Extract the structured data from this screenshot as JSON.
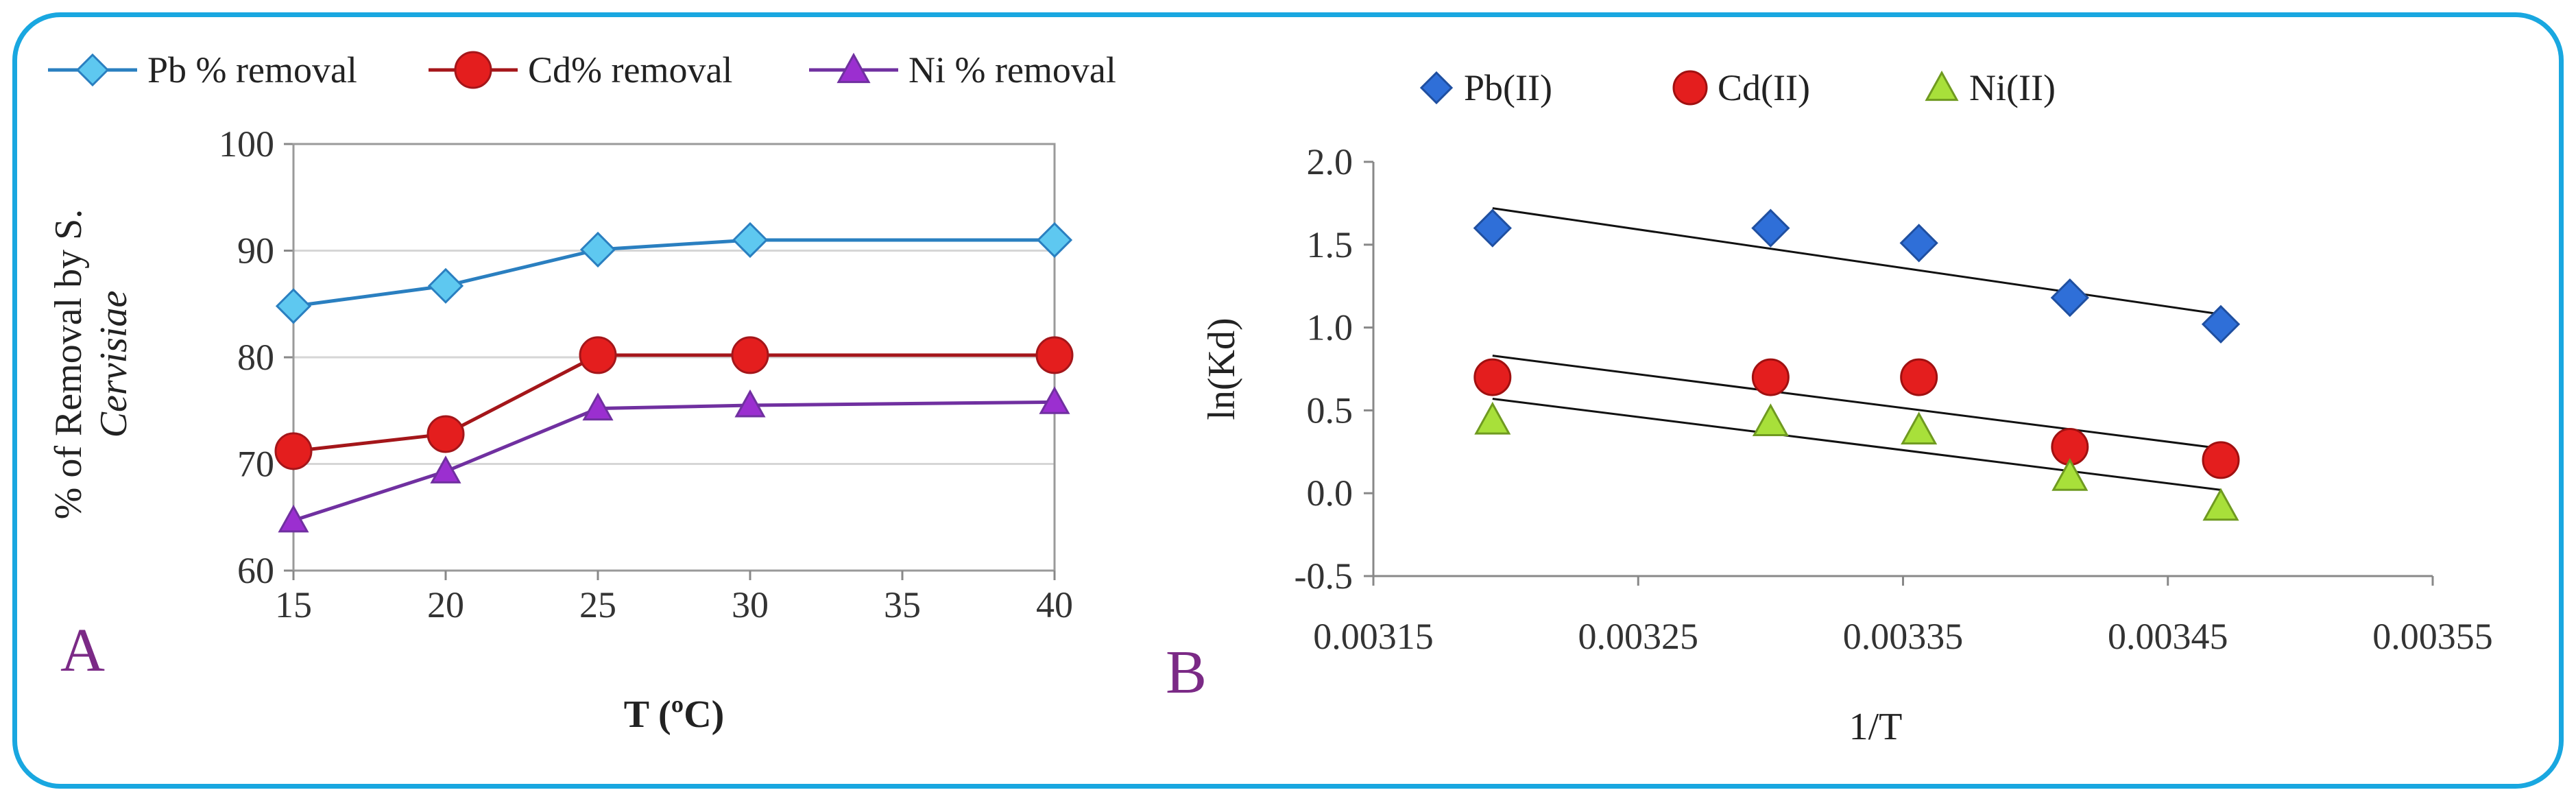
{
  "chart_data": [
    {
      "type": "line",
      "panel_label": "A",
      "xlabel": "T (ºC)",
      "ylabel_line1": "% of Removal by S.",
      "ylabel_line2": "Cervisiae",
      "xlim": [
        15,
        40
      ],
      "ylim": [
        60,
        100
      ],
      "xticks": [
        "15",
        "20",
        "25",
        "30",
        "35",
        "40"
      ],
      "yticks": [
        "60",
        "70",
        "80",
        "90",
        "100"
      ],
      "legend_position": "top",
      "series": [
        {
          "name": "Pb % removal",
          "color": "#2a7fc0",
          "marker_color": "#5ec8f0",
          "marker": "diamond",
          "x": [
            15,
            20,
            25,
            30,
            40
          ],
          "y": [
            84.8,
            86.7,
            90.1,
            91.0,
            91.0
          ]
        },
        {
          "name": "Cd% removal",
          "color": "#a4161a",
          "marker_color": "#e41e1e",
          "marker": "circle",
          "x": [
            15,
            20,
            25,
            30,
            40
          ],
          "y": [
            71.2,
            72.8,
            80.2,
            80.2,
            80.2
          ]
        },
        {
          "name": "Ni % removal",
          "color": "#7030a0",
          "marker_color": "#9b2fd0",
          "marker": "triangle",
          "x": [
            15,
            20,
            25,
            30,
            40
          ],
          "y": [
            64.7,
            69.3,
            75.2,
            75.5,
            75.8
          ]
        }
      ]
    },
    {
      "type": "scatter",
      "panel_label": "B",
      "xlabel": "1/T",
      "ylabel": "ln(Kd)",
      "xlim": [
        0.00315,
        0.00355
      ],
      "ylim": [
        -0.5,
        2.0
      ],
      "xticks": [
        "0.00315",
        "0.00325",
        "0.00335",
        "0.00345",
        "0.00355"
      ],
      "yticks": [
        "-0.5",
        "0.0",
        "0.5",
        "1.0",
        "1.5",
        "2.0"
      ],
      "legend_position": "top",
      "series": [
        {
          "name": "Pb(II)",
          "color": "#2f6fd8",
          "marker": "diamond",
          "x": [
            0.003195,
            0.0033,
            0.003356,
            0.003413,
            0.00347
          ],
          "y": [
            1.6,
            1.6,
            1.51,
            1.18,
            1.02
          ],
          "trend": [
            [
              0.003195,
              1.72
            ],
            [
              0.00347,
              1.08
            ]
          ]
        },
        {
          "name": "Cd(II)",
          "color": "#e41e1e",
          "marker": "circle",
          "x": [
            0.003195,
            0.0033,
            0.003356,
            0.003413,
            0.00347
          ],
          "y": [
            0.7,
            0.7,
            0.7,
            0.28,
            0.2
          ],
          "trend": [
            [
              0.003195,
              0.83
            ],
            [
              0.00347,
              0.27
            ]
          ]
        },
        {
          "name": "Ni(II)",
          "color": "#a8e03a",
          "marker": "triangle",
          "x": [
            0.003195,
            0.0033,
            0.003356,
            0.003413,
            0.00347
          ],
          "y": [
            0.44,
            0.43,
            0.38,
            0.1,
            -0.08
          ],
          "trend": [
            [
              0.003195,
              0.57
            ],
            [
              0.00347,
              0.02
            ]
          ]
        }
      ]
    }
  ]
}
